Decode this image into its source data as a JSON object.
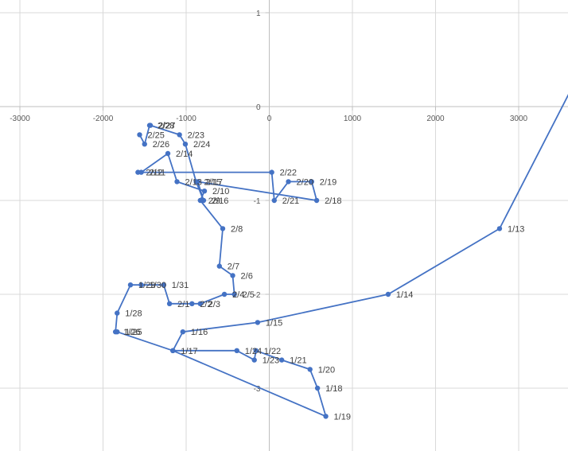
{
  "chart_data": {
    "type": "scatter",
    "mode": "lines+markers",
    "title": "",
    "xlabel": "",
    "ylabel": "",
    "xlim": [
      -3000,
      3600
    ],
    "ylim": [
      -3.65,
      1.1
    ],
    "x_ticks": [
      -3000,
      -2000,
      -1000,
      0,
      1000,
      2000,
      3000
    ],
    "x_tick_labels": [
      "-3000",
      "-2000",
      "-1000",
      "0",
      "1000",
      "2000",
      "3000"
    ],
    "y_ticks": [
      1,
      0,
      -1,
      -2,
      -3
    ],
    "y_tick_labels": [
      "1",
      "0",
      "-1",
      "-2",
      "-3"
    ],
    "grid": true,
    "legend": "none",
    "colors": {
      "series": "#4472c4",
      "grid": "#d9d9d9",
      "axis": "#bfbfbf",
      "text": "#595959"
    },
    "series": [
      {
        "points": [
          {
            "x": 3600,
            "y": 0.13,
            "label": ""
          },
          {
            "x": 2770,
            "y": -1.3,
            "label": "1/13"
          },
          {
            "x": 1430,
            "y": -2.0,
            "label": "1/14"
          },
          {
            "x": -140,
            "y": -2.3,
            "label": "1/15"
          },
          {
            "x": -1040,
            "y": -2.4,
            "label": "1/16"
          },
          {
            "x": -1160,
            "y": -2.6,
            "label": "1/17"
          },
          {
            "x": -390,
            "y": -2.6,
            "label": "1/24"
          },
          {
            "x": -180,
            "y": -2.7,
            "label": "1/23"
          },
          {
            "x": -160,
            "y": -2.6,
            "label": "1/22"
          },
          {
            "x": 150,
            "y": -2.7,
            "label": "1/21"
          },
          {
            "x": 490,
            "y": -2.8,
            "label": "1/20"
          },
          {
            "x": 580,
            "y": -3.0,
            "label": "1/18"
          },
          {
            "x": 680,
            "y": -3.3,
            "label": "1/19"
          },
          {
            "x": -1160,
            "y": -2.6,
            "label": ""
          },
          {
            "x": -1830,
            "y": -2.4,
            "label": "1/25"
          },
          {
            "x": -1850,
            "y": -2.4,
            "label": "1/26"
          },
          {
            "x": -1830,
            "y": -2.2,
            "label": "1/28"
          },
          {
            "x": -1670,
            "y": -1.9,
            "label": "1/29"
          },
          {
            "x": -1540,
            "y": -1.9,
            "label": "1/30"
          },
          {
            "x": -1270,
            "y": -1.9,
            "label": "1/31"
          },
          {
            "x": -1200,
            "y": -2.1,
            "label": "2/1"
          },
          {
            "x": -930,
            "y": -2.1,
            "label": "2/2"
          },
          {
            "x": -830,
            "y": -2.1,
            "label": "2/3"
          },
          {
            "x": -540,
            "y": -2.0,
            "label": "2/4"
          },
          {
            "x": -420,
            "y": -2.0,
            "label": "2/5"
          },
          {
            "x": -440,
            "y": -1.8,
            "label": "2/6"
          },
          {
            "x": -600,
            "y": -1.7,
            "label": "2/7"
          },
          {
            "x": -560,
            "y": -1.3,
            "label": "2/8"
          },
          {
            "x": -830,
            "y": -1.0,
            "label": "2/9"
          },
          {
            "x": -780,
            "y": -0.9,
            "label": "2/10"
          },
          {
            "x": -1110,
            "y": -0.8,
            "label": "2/13"
          },
          {
            "x": -1220,
            "y": -0.5,
            "label": "2/14"
          },
          {
            "x": -1540,
            "y": -0.7,
            "label": "2/11"
          },
          {
            "x": -1580,
            "y": -0.7,
            "label": "2/12"
          },
          {
            "x": 30,
            "y": -0.7,
            "label": "2/22"
          },
          {
            "x": 60,
            "y": -1.0,
            "label": "2/21"
          },
          {
            "x": 230,
            "y": -0.8,
            "label": "2/20"
          },
          {
            "x": 510,
            "y": -0.8,
            "label": "2/19"
          },
          {
            "x": 570,
            "y": -1.0,
            "label": "2/18"
          },
          {
            "x": -860,
            "y": -0.8,
            "label": "2/17"
          },
          {
            "x": -790,
            "y": -1.0,
            "label": "2/16"
          },
          {
            "x": -880,
            "y": -0.8,
            "label": "2/15"
          },
          {
            "x": -1010,
            "y": -0.4,
            "label": "2/24"
          },
          {
            "x": -1080,
            "y": -0.3,
            "label": "2/23"
          },
          {
            "x": -1430,
            "y": -0.2,
            "label": "2/27"
          },
          {
            "x": -1440,
            "y": -0.2,
            "label": "2/28"
          },
          {
            "x": -1500,
            "y": -0.4,
            "label": "2/26"
          },
          {
            "x": -1560,
            "y": -0.3,
            "label": "2/25"
          }
        ]
      }
    ]
  }
}
